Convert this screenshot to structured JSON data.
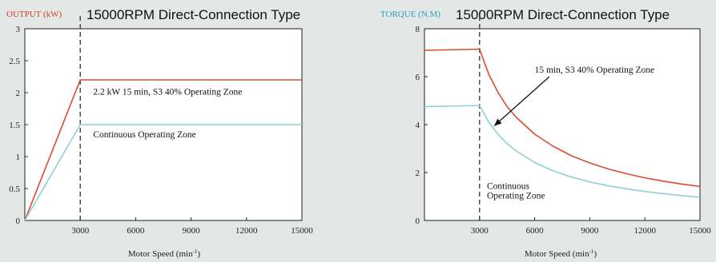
{
  "colors": {
    "s3": "#dd4a2e",
    "continuous": "#8fcfd8",
    "background": "#e3e7e5"
  },
  "chart_data": [
    {
      "type": "line",
      "title": "15000RPM Direct-Connection Type",
      "ylabel": "OUTPUT (kW)",
      "xlabel": "Motor Speed (min",
      "xlabel_sup": "-1",
      "xlabel_close": ")",
      "xlim": [
        0,
        15000
      ],
      "ylim": [
        0,
        3
      ],
      "xticks": [
        3000,
        6000,
        9000,
        12000,
        15000
      ],
      "yticks": [
        0,
        0.5,
        1,
        1.5,
        2,
        2.5,
        3
      ],
      "vline_x": 3000,
      "series": [
        {
          "key": "s3",
          "points": [
            [
              0,
              0
            ],
            [
              3000,
              2.2
            ],
            [
              15000,
              2.2
            ]
          ]
        },
        {
          "key": "continuous",
          "points": [
            [
              0,
              0
            ],
            [
              3000,
              1.5
            ],
            [
              15000,
              1.5
            ]
          ]
        }
      ],
      "annotations": [
        {
          "text": "2.2 kW 15 min, S3 40% Operating Zone",
          "x": 3700,
          "y": 2.02
        },
        {
          "text": "Continuous Operating Zone",
          "x": 3700,
          "y": 1.35
        }
      ]
    },
    {
      "type": "line",
      "title": "15000RPM Direct-Connection Type",
      "ylabel": "TORQUE (N.M)",
      "xlabel": "Motor Speed (min",
      "xlabel_sup": "-1",
      "xlabel_close": ")",
      "xlim": [
        0,
        15000
      ],
      "ylim": [
        0,
        8
      ],
      "xticks": [
        3000,
        6000,
        9000,
        12000,
        15000
      ],
      "yticks": [
        0,
        2,
        4,
        6,
        8
      ],
      "vline_x": 3000,
      "series": [
        {
          "key": "s3",
          "points": [
            [
              0,
              7.1
            ],
            [
              3000,
              7.15
            ],
            [
              3500,
              6.1
            ],
            [
              4000,
              5.35
            ],
            [
              4500,
              4.75
            ],
            [
              5000,
              4.3
            ],
            [
              6000,
              3.6
            ],
            [
              7000,
              3.1
            ],
            [
              8000,
              2.7
            ],
            [
              9000,
              2.4
            ],
            [
              10000,
              2.15
            ],
            [
              11000,
              1.95
            ],
            [
              12000,
              1.78
            ],
            [
              13000,
              1.64
            ],
            [
              14000,
              1.52
            ],
            [
              15000,
              1.42
            ]
          ]
        },
        {
          "key": "continuous",
          "points": [
            [
              0,
              4.75
            ],
            [
              3000,
              4.8
            ],
            [
              3500,
              4.1
            ],
            [
              4000,
              3.6
            ],
            [
              4500,
              3.2
            ],
            [
              5000,
              2.9
            ],
            [
              6000,
              2.42
            ],
            [
              7000,
              2.07
            ],
            [
              8000,
              1.81
            ],
            [
              9000,
              1.61
            ],
            [
              10000,
              1.45
            ],
            [
              11000,
              1.32
            ],
            [
              12000,
              1.21
            ],
            [
              13000,
              1.12
            ],
            [
              14000,
              1.04
            ],
            [
              15000,
              0.97
            ]
          ]
        }
      ],
      "annotations": [
        {
          "text": "15 min, S3 40% Operating Zone",
          "x": 6000,
          "y": 6.3
        },
        {
          "text": "Continuous",
          "x": 3400,
          "y": 1.45
        },
        {
          "text": "Operating Zone",
          "x": 3400,
          "y": 1.05
        }
      ],
      "arrow": {
        "from": [
          6800,
          6.0
        ],
        "to": [
          3800,
          3.95
        ]
      }
    }
  ]
}
